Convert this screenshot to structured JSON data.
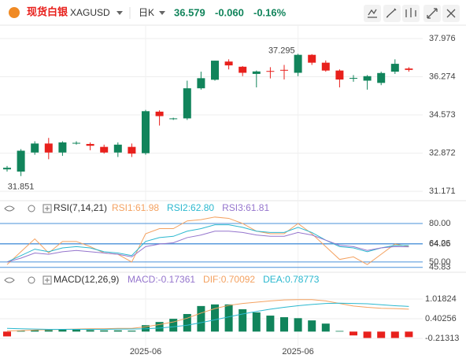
{
  "header": {
    "name": "现货白银",
    "symbol": "XAGUSD",
    "period": "日K",
    "price": "36.579",
    "change": "-0.060",
    "change_pct": "-0.16%"
  },
  "chart_data": [
    {
      "type": "candlestick",
      "up_color": "#11845b",
      "down_color": "#e8201c",
      "categories": [
        null,
        null,
        null,
        null,
        null,
        null,
        null,
        null,
        null,
        null,
        "2025-06",
        null,
        null,
        null,
        null,
        null,
        null,
        null,
        null,
        null,
        null,
        "2025-06",
        null,
        null,
        null,
        null,
        null,
        null,
        null,
        null
      ],
      "open": [
        32.15,
        32.05,
        32.9,
        33.3,
        32.9,
        33.3,
        33.28,
        33.15,
        32.9,
        33.15,
        32.87,
        34.72,
        34.4,
        34.42,
        35.76,
        36.14,
        36.95,
        36.72,
        36.4,
        36.53,
        36.58,
        36.45,
        37.25,
        36.9,
        36.55,
        36.2,
        36.1,
        36.0,
        36.5,
        36.64
      ],
      "high": [
        32.3,
        33.05,
        33.4,
        33.55,
        33.4,
        33.4,
        33.35,
        33.25,
        33.35,
        33.3,
        34.8,
        34.78,
        34.45,
        36.1,
        36.5,
        36.99,
        37.05,
        36.75,
        36.55,
        36.7,
        36.8,
        37.295,
        37.28,
        37.0,
        36.6,
        36.35,
        36.35,
        36.5,
        37.05,
        36.7
      ],
      "low": [
        32.05,
        31.851,
        32.8,
        32.6,
        32.75,
        33.25,
        33.0,
        32.85,
        32.7,
        32.7,
        32.8,
        34.1,
        34.35,
        34.35,
        35.7,
        36.1,
        36.6,
        36.3,
        35.8,
        36.2,
        36.15,
        36.3,
        36.8,
        36.5,
        35.8,
        36.05,
        35.7,
        35.9,
        36.4,
        36.5
      ],
      "close": [
        32.22,
        32.98,
        33.3,
        32.9,
        33.35,
        33.33,
        33.2,
        32.9,
        33.25,
        32.85,
        34.74,
        34.52,
        34.42,
        35.76,
        36.21,
        36.99,
        36.78,
        36.45,
        36.51,
        36.5,
        36.55,
        37.25,
        36.9,
        36.55,
        36.15,
        36.22,
        36.3,
        36.44,
        36.85,
        36.579
      ],
      "max_label": "37.295",
      "min_label": "31.851",
      "ylim": [
        30.86,
        38.36
      ],
      "yticks": [
        31.171,
        32.872,
        34.573,
        36.274,
        37.976
      ],
      "grid": true
    },
    {
      "type": "line",
      "title": "RSI(7,14,21)",
      "grid": true,
      "grid_color": "#4a90d9",
      "ylim": [
        42.6,
        85.5
      ],
      "yticks": [
        45.83,
        {
          "value": 50,
          "label": "50.00"
        },
        64.05,
        64.26,
        {
          "value": 80,
          "label": "80.00"
        }
      ],
      "series": [
        {
          "name": "RSI1:61.98",
          "color": "#f4a261",
          "values": [
            48,
            58,
            68,
            57,
            66,
            66,
            62,
            57,
            56,
            50,
            72,
            76,
            76,
            82,
            83,
            85,
            84,
            80,
            74,
            72,
            72,
            80,
            72,
            62,
            52,
            54,
            48,
            56,
            64,
            61.98
          ]
        },
        {
          "name": "RSI2:62.80",
          "color": "#2bb8cf",
          "values": [
            50,
            55,
            60,
            58,
            61,
            62,
            61,
            58,
            57,
            55,
            66,
            69,
            70,
            74,
            76,
            79,
            79,
            77,
            74,
            73,
            73,
            77,
            73,
            67,
            62,
            61,
            58,
            61,
            63,
            62.8
          ]
        },
        {
          "name": "RSI3:61.81",
          "color": "#9575cd",
          "values": [
            50,
            53,
            57,
            56,
            58,
            59,
            58,
            57,
            56,
            54,
            62,
            64,
            65,
            69,
            71,
            74,
            74,
            73,
            71,
            70,
            70,
            73,
            71,
            67,
            63,
            62,
            59,
            61,
            62,
            61.81
          ]
        }
      ]
    },
    {
      "type": "combo",
      "title": "MACD(12,26,9)",
      "grid": true,
      "ylim": [
        -0.459,
        1.757
      ],
      "yticks": [
        -0.21313,
        0.40256,
        1.01824
      ],
      "series": [
        {
          "name": "MACD:-0.17361",
          "type": "bar",
          "color": "#11845b",
          "negative_color": "#e8201c",
          "label_color": "#9575cd",
          "values": [
            -0.15,
            0.03,
            0.05,
            0.05,
            0.06,
            0.06,
            0.05,
            0.04,
            0.04,
            0.03,
            0.2,
            0.3,
            0.4,
            0.55,
            0.8,
            0.85,
            0.85,
            0.7,
            0.6,
            0.5,
            0.45,
            0.42,
            0.35,
            0.25,
            0.02,
            -0.12,
            -0.2,
            -0.2,
            -0.2,
            -0.17361
          ]
        },
        {
          "name": "DIF:0.70092",
          "type": "line",
          "color": "#f4a261",
          "values": [
            0.02,
            0.03,
            0.05,
            0.06,
            0.07,
            0.08,
            0.09,
            0.09,
            0.1,
            0.1,
            0.15,
            0.22,
            0.3,
            0.42,
            0.58,
            0.72,
            0.82,
            0.88,
            0.92,
            0.96,
            0.99,
            1.0,
            1.0,
            0.96,
            0.88,
            0.8,
            0.76,
            0.73,
            0.72,
            0.70092
          ]
        },
        {
          "name": "DEA:0.78773",
          "type": "line",
          "color": "#2bb8cf",
          "values": [
            0.1,
            0.09,
            0.08,
            0.07,
            0.07,
            0.07,
            0.07,
            0.07,
            0.08,
            0.08,
            0.09,
            0.11,
            0.15,
            0.2,
            0.28,
            0.37,
            0.46,
            0.55,
            0.63,
            0.7,
            0.76,
            0.81,
            0.85,
            0.88,
            0.89,
            0.88,
            0.87,
            0.84,
            0.81,
            0.78773
          ]
        }
      ]
    }
  ]
}
